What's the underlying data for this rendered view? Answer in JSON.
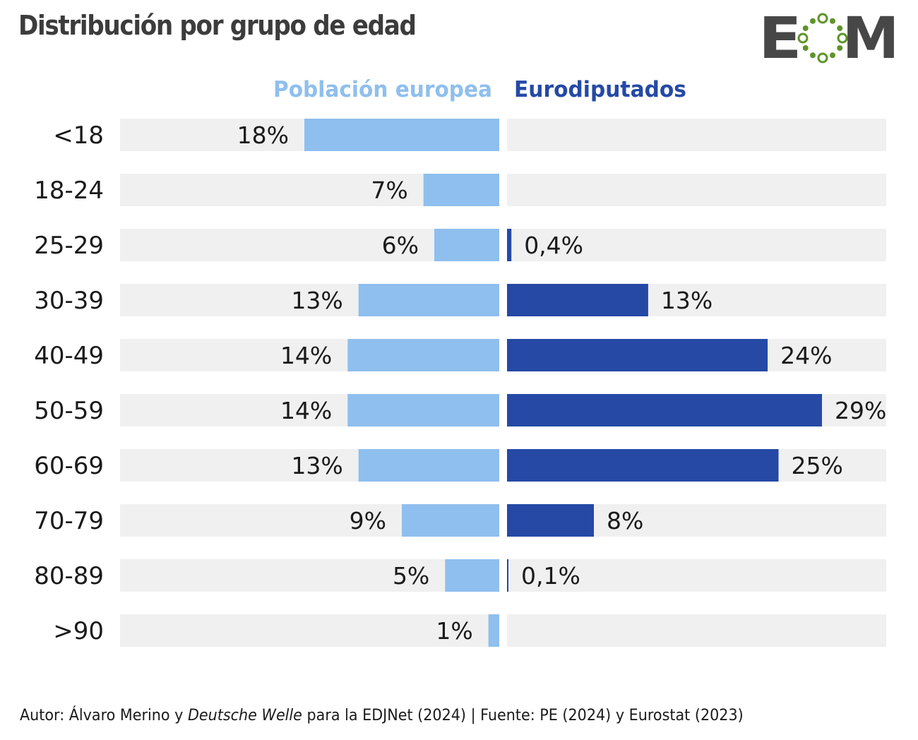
{
  "title": "Distribución por grupo de edad",
  "logo": {
    "letters": [
      "E",
      "M"
    ],
    "text_color": "#474747",
    "ring_color": "#5e9429"
  },
  "chart_data": {
    "type": "bar",
    "orientation": "horizontal",
    "layout": "diverging",
    "categories": [
      "<18",
      "18-24",
      "25-29",
      "30-39",
      "40-49",
      "50-59",
      "60-69",
      "70-79",
      "80-89",
      ">90"
    ],
    "series": [
      {
        "name": "Población europea",
        "color": "#8fbfee",
        "values": [
          18,
          7,
          6,
          13,
          14,
          14,
          13,
          9,
          5,
          1
        ],
        "labels": [
          "18%",
          "7%",
          "6%",
          "13%",
          "14%",
          "14%",
          "13%",
          "9%",
          "5%",
          "1%"
        ]
      },
      {
        "name": "Eurodiputados",
        "color": "#2549a5",
        "values": [
          0,
          0,
          0.4,
          13,
          24,
          29,
          25,
          8,
          0.1,
          0
        ],
        "labels": [
          "",
          "",
          "0,4%",
          "13%",
          "24%",
          "29%",
          "25%",
          "8%",
          "0,1%",
          ""
        ]
      }
    ],
    "unit": "%",
    "track_color": "#f0f0f0",
    "legend_position": "top-center",
    "grid": false
  },
  "footer": {
    "prefix": "Autor: Álvaro Merino y ",
    "italic": "Deutsche Welle",
    "suffix": " para la EDJNet (2024) | Fuente: PE (2024) y Eurostat (2023)"
  }
}
